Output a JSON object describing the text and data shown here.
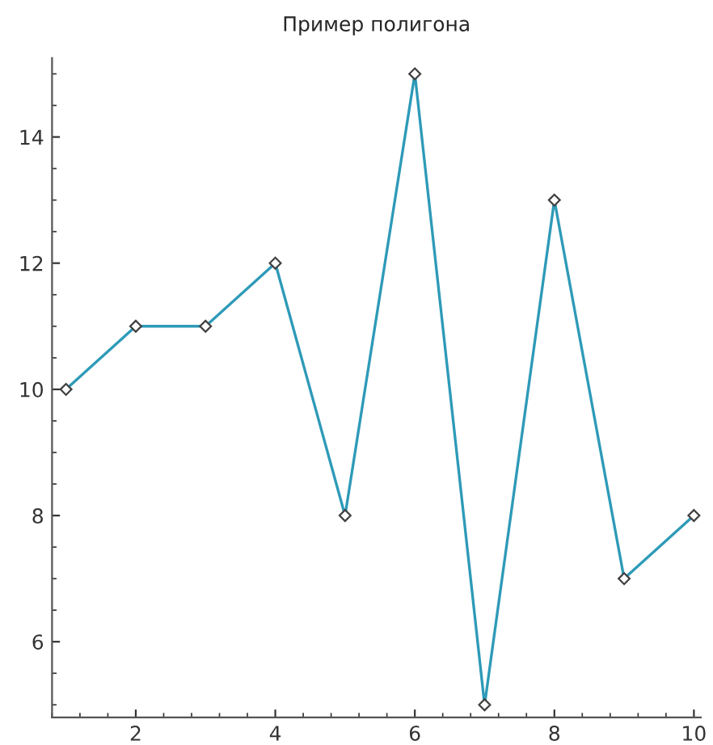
{
  "chart_data": {
    "type": "line",
    "title": "Пример полигона",
    "x": [
      1,
      2,
      3,
      4,
      5,
      6,
      7,
      8,
      9,
      10
    ],
    "series": [
      {
        "color": "#2e9ab8",
        "values": [
          10,
          11,
          11,
          12,
          8,
          15,
          5,
          13,
          7,
          8
        ]
      }
    ],
    "xlim": [
      0.8,
      10.1
    ],
    "ylim": [
      4.8,
      15.25
    ],
    "xticks": [
      2,
      4,
      6,
      8,
      10
    ],
    "yticks": [
      6,
      8,
      10,
      12,
      14
    ],
    "marker": "diamond",
    "line_style": "solid",
    "grid": false,
    "legend": false
  }
}
